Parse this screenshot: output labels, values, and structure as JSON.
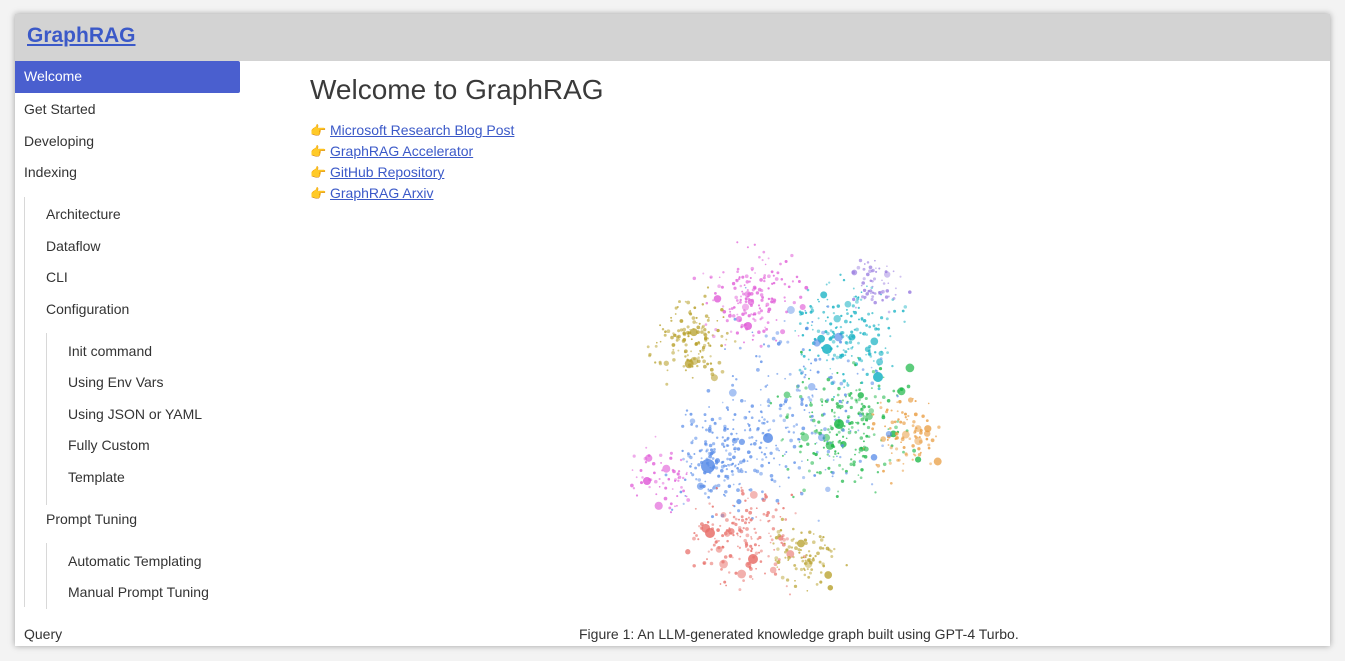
{
  "header": {
    "brand": "GraphRAG"
  },
  "sidebar": {
    "items": [
      {
        "label": "Welcome",
        "active": true
      },
      {
        "label": "Get Started"
      },
      {
        "label": "Developing"
      },
      {
        "label": "Indexing"
      },
      {
        "label": "Architecture"
      },
      {
        "label": "Dataflow"
      },
      {
        "label": "CLI"
      },
      {
        "label": "Configuration"
      },
      {
        "label": "Init command"
      },
      {
        "label": "Using Env Vars"
      },
      {
        "label": "Using JSON or YAML"
      },
      {
        "label": "Fully Custom"
      },
      {
        "label": "Template"
      },
      {
        "label": "Prompt Tuning"
      },
      {
        "label": "Automatic Templating"
      },
      {
        "label": "Manual Prompt Tuning"
      },
      {
        "label": "Query"
      }
    ]
  },
  "main": {
    "title": "Welcome to GraphRAG",
    "links": [
      {
        "icon": "pointing-hand-icon",
        "label": "Microsoft Research Blog Post"
      },
      {
        "icon": "pointing-hand-icon",
        "label": "GraphRAG Accelerator"
      },
      {
        "icon": "pointing-hand-icon",
        "label": "GitHub Repository"
      },
      {
        "icon": "pointing-hand-icon",
        "label": "GraphRAG Arxiv"
      }
    ],
    "figure": {
      "caption": "Figure 1: An LLM-generated knowledge graph built using GPT-4 Turbo."
    }
  },
  "colors": {
    "accent": "#4a5fcf",
    "link": "#3b59c8",
    "header_bg": "#d3d3d3",
    "graph_palette": [
      "#e15fd8",
      "#b8a12d",
      "#19b3c4",
      "#1fb84a",
      "#5a8de8",
      "#e8706a",
      "#e89a3c",
      "#9a7de0"
    ]
  }
}
